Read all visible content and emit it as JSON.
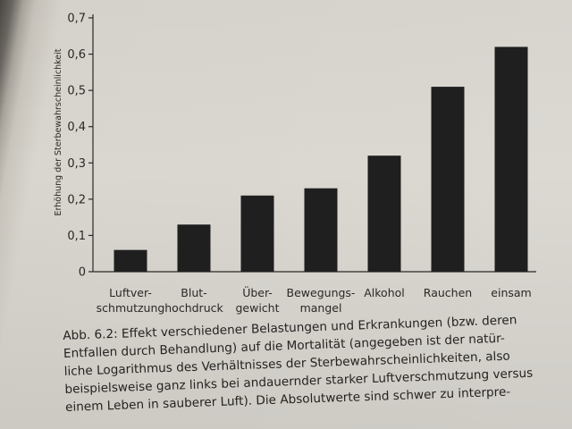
{
  "chart_data": {
    "type": "bar",
    "categories": [
      [
        "Luftver-",
        "schmutzung"
      ],
      [
        "Blut-",
        "hochdruck"
      ],
      [
        "Über-",
        "gewicht"
      ],
      [
        "Bewegungs-",
        "mangel"
      ],
      [
        "Alkohol"
      ],
      [
        "Rauchen"
      ],
      [
        "einsam"
      ]
    ],
    "values": [
      0.06,
      0.13,
      0.21,
      0.23,
      0.32,
      0.51,
      0.62
    ],
    "ylabel": "Erhöhung der Sterbewahrscheinlichkeit",
    "yticks": [
      "0",
      "0,1",
      "0,2",
      "0,3",
      "0,4",
      "0,5",
      "0,6",
      "0,7"
    ],
    "ylim": [
      0,
      0.7
    ],
    "grid": false,
    "bar_color": "#1f1f1f"
  },
  "caption": {
    "lines": [
      "Abb. 6.2: Effekt verschiedener Belastungen und Erkrankungen (bzw. deren",
      "Entfallen durch Behandlung) auf die Mortalität (angegeben ist der natür-",
      "liche Logarithmus des Verhältnisses der Sterbewahrscheinlichkeiten, also",
      "beispielsweise ganz links bei andauernder starker Luftverschmutzung versus",
      "einem Leben in sauberer Luft). Die Absolutwerte sind schwer zu interpre-"
    ]
  }
}
